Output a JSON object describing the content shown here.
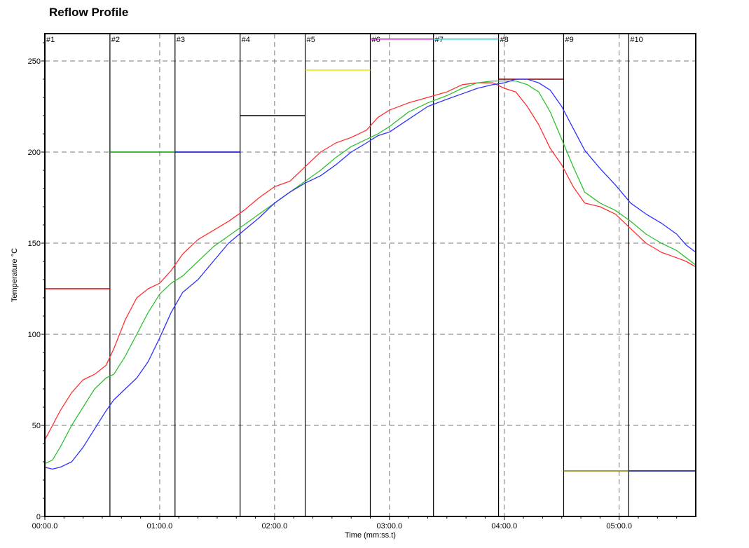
{
  "page": {
    "title": "Reflow Profile"
  },
  "chart_data": {
    "type": "line",
    "xlabel": "Time (mm:ss.t)",
    "ylabel": "Temperature °C",
    "xlim": [
      0,
      340
    ],
    "ylim": [
      0,
      265
    ],
    "x_ticks": [
      {
        "value": 0,
        "label": "00:00.0"
      },
      {
        "value": 60,
        "label": "01:00.0"
      },
      {
        "value": 120,
        "label": "02:00.0"
      },
      {
        "value": 180,
        "label": "03:00.0"
      },
      {
        "value": 240,
        "label": "04:00.0"
      },
      {
        "value": 300,
        "label": "05:00.0"
      }
    ],
    "y_ticks": [
      {
        "value": 0,
        "label": "0"
      },
      {
        "value": 50,
        "label": "50"
      },
      {
        "value": 100,
        "label": "100"
      },
      {
        "value": 150,
        "label": "150"
      },
      {
        "value": 200,
        "label": "200"
      },
      {
        "value": 250,
        "label": "250"
      }
    ],
    "grid": true,
    "zones": [
      {
        "label": "#1",
        "start": 0,
        "end": 34,
        "setpoint": 125,
        "color": "#e00000"
      },
      {
        "label": "#2",
        "start": 34,
        "end": 68,
        "setpoint": 200,
        "color": "#00a000"
      },
      {
        "label": "#3",
        "start": 68,
        "end": 102,
        "setpoint": 200,
        "color": "#0000c0"
      },
      {
        "label": "#4",
        "start": 102,
        "end": 136,
        "setpoint": 220,
        "color": "#000000"
      },
      {
        "label": "#5",
        "start": 136,
        "end": 170,
        "setpoint": 245,
        "color": "#e8e800"
      },
      {
        "label": "#6",
        "start": 170,
        "end": 203,
        "setpoint": 262,
        "color": "#e000e0"
      },
      {
        "label": "#7",
        "start": 203,
        "end": 237,
        "setpoint": 262,
        "color": "#00d8d8"
      },
      {
        "label": "#8",
        "start": 237,
        "end": 271,
        "setpoint": 240,
        "color": "#800000"
      },
      {
        "label": "#9",
        "start": 271,
        "end": 305,
        "setpoint": 25,
        "color": "#808000"
      },
      {
        "label": "#10",
        "start": 305,
        "end": 340,
        "setpoint": 25,
        "color": "#000080"
      }
    ],
    "series": [
      {
        "color": "#ff3030",
        "x": [
          0,
          4,
          8,
          14,
          20,
          26,
          32,
          36,
          42,
          48,
          54,
          60,
          66,
          72,
          80,
          88,
          96,
          104,
          112,
          120,
          128,
          136,
          144,
          152,
          160,
          168,
          174,
          180,
          190,
          200,
          210,
          218,
          226,
          234,
          240,
          246,
          252,
          258,
          264,
          270,
          276,
          282,
          290,
          298,
          306,
          314,
          322,
          330,
          335,
          340
        ],
        "y": [
          42,
          50,
          58,
          68,
          75,
          78,
          83,
          92,
          108,
          120,
          125,
          128,
          135,
          144,
          152,
          157,
          162,
          168,
          175,
          181,
          184,
          192,
          200,
          205,
          208,
          212,
          219,
          223,
          227,
          230,
          233,
          237,
          238,
          238,
          235,
          233,
          225,
          215,
          202,
          193,
          181,
          172,
          170,
          166,
          158,
          150,
          145,
          142,
          140,
          137
        ]
      },
      {
        "color": "#30c030",
        "x": [
          0,
          4,
          8,
          14,
          20,
          26,
          32,
          36,
          42,
          48,
          54,
          60,
          66,
          72,
          80,
          88,
          96,
          104,
          112,
          120,
          128,
          136,
          144,
          152,
          160,
          168,
          174,
          180,
          190,
          200,
          210,
          218,
          226,
          234,
          240,
          246,
          252,
          258,
          264,
          270,
          276,
          282,
          290,
          298,
          306,
          314,
          322,
          330,
          335,
          340
        ],
        "y": [
          29,
          31,
          38,
          50,
          60,
          70,
          76,
          78,
          88,
          100,
          112,
          122,
          128,
          132,
          140,
          148,
          154,
          160,
          166,
          172,
          178,
          184,
          190,
          197,
          203,
          207,
          210,
          214,
          222,
          227,
          231,
          235,
          238,
          239,
          239,
          239,
          237,
          233,
          222,
          207,
          192,
          178,
          172,
          168,
          162,
          155,
          150,
          146,
          142,
          138
        ]
      },
      {
        "color": "#3030ff",
        "x": [
          0,
          4,
          8,
          14,
          20,
          26,
          32,
          36,
          42,
          48,
          54,
          60,
          66,
          72,
          80,
          88,
          96,
          104,
          112,
          120,
          128,
          136,
          144,
          152,
          160,
          168,
          174,
          180,
          190,
          200,
          210,
          218,
          226,
          234,
          240,
          246,
          252,
          258,
          264,
          270,
          276,
          282,
          290,
          298,
          306,
          314,
          322,
          330,
          335,
          340
        ],
        "y": [
          27,
          26,
          27,
          30,
          38,
          48,
          58,
          64,
          70,
          76,
          85,
          98,
          112,
          123,
          130,
          140,
          150,
          157,
          164,
          172,
          178,
          183,
          187,
          193,
          200,
          205,
          209,
          211,
          218,
          225,
          229,
          232,
          235,
          237,
          238,
          240,
          240,
          238,
          234,
          225,
          213,
          201,
          191,
          182,
          172,
          166,
          161,
          155,
          149,
          145
        ]
      }
    ]
  }
}
